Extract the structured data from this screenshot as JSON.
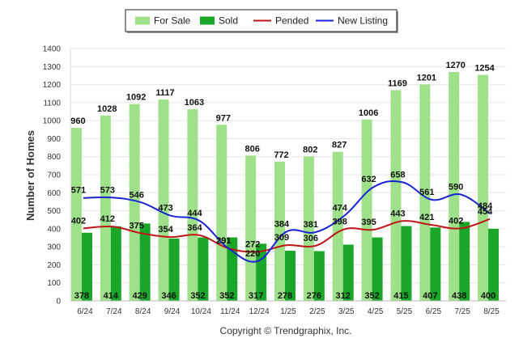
{
  "chart_data": {
    "type": "bar",
    "categories": [
      "6/24",
      "7/24",
      "8/24",
      "9/24",
      "10/24",
      "11/24",
      "12/24",
      "1/25",
      "2/25",
      "3/25",
      "4/25",
      "5/25",
      "6/25",
      "7/25",
      "8/25"
    ],
    "series": [
      {
        "name": "For Sale",
        "kind": "bar",
        "color": "#9fe08a",
        "values": [
          960,
          1028,
          1092,
          1117,
          1063,
          977,
          806,
          772,
          802,
          827,
          1006,
          1169,
          1201,
          1270,
          1254
        ]
      },
      {
        "name": "Sold",
        "kind": "bar",
        "color": "#19a629",
        "values": [
          378,
          414,
          429,
          346,
          352,
          352,
          317,
          278,
          276,
          312,
          352,
          415,
          407,
          438,
          400
        ]
      },
      {
        "name": "Pended",
        "kind": "line",
        "color": "#c0161b",
        "values": [
          402,
          412,
          375,
          354,
          364,
          291,
          272,
          309,
          306,
          398,
          395,
          443,
          421,
          402,
          454
        ]
      },
      {
        "name": "New Listing",
        "kind": "line",
        "color": "#1a22d6",
        "values": [
          571,
          573,
          546,
          473,
          444,
          291,
          220,
          384,
          381,
          474,
          632,
          658,
          561,
          590,
          484
        ]
      }
    ],
    "ylabel": "Number of Homes",
    "xlabel": "",
    "ylim": [
      0,
      1400
    ],
    "yticks": [
      0,
      100,
      200,
      300,
      400,
      500,
      600,
      700,
      800,
      900,
      1000,
      1100,
      1200,
      1300,
      1400
    ],
    "grid": true,
    "legend": "top-center"
  },
  "footer": {
    "copyright": "Copyright © Trendgraphix, Inc."
  }
}
